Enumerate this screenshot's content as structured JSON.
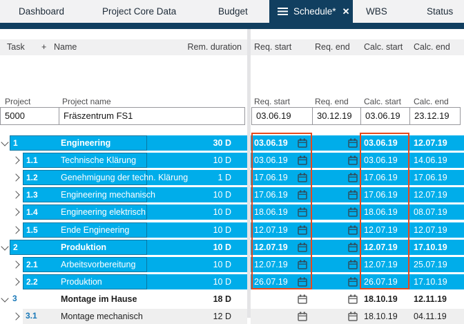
{
  "tabs": {
    "items": [
      {
        "label": "Dashboard",
        "active": false
      },
      {
        "label": "Project Core Data",
        "active": false
      },
      {
        "label": "Budget",
        "active": false
      },
      {
        "label": "Schedule*",
        "active": true
      },
      {
        "label": "WBS",
        "active": false
      },
      {
        "label": "Status",
        "active": false
      }
    ]
  },
  "icons": {
    "menu": "hamburger-icon",
    "close": "✕",
    "calendar": "calendar-icon",
    "chevron_expanded": "chevron-down-icon",
    "chevron_collapsed": "chevron-right-icon"
  },
  "table_header": {
    "task": "Task",
    "plus": "+",
    "name": "Name",
    "rem_duration": "Rem. duration",
    "req_start": "Req. start",
    "req_end": "Req. end",
    "calc_start": "Calc. start",
    "calc_end": "Calc. end"
  },
  "project_header": {
    "project": "Project",
    "project_name": "Project name",
    "req_start": "Req. start",
    "req_end": "Req. end",
    "calc_start": "Calc. start",
    "calc_end": "Calc. end"
  },
  "project_row": {
    "id": "5000",
    "name": "Fräszentrum FS1",
    "req_start": "03.06.19",
    "req_end": "30.12.19",
    "calc_start": "03.06.19",
    "calc_end": "23.12.19"
  },
  "rows": [
    {
      "task": "1",
      "level": 1,
      "expanded": true,
      "selected": true,
      "shaded": false,
      "bold": true,
      "name": "Engineering",
      "duration": "30 D",
      "req_start": "03.06.19",
      "req_end": "",
      "calc_start": "03.06.19",
      "calc_end": "12.07.19"
    },
    {
      "task": "1.1",
      "level": 2,
      "expanded": false,
      "selected": true,
      "shaded": false,
      "bold": false,
      "name": "Technische Klärung",
      "duration": "10 D",
      "req_start": "03.06.19",
      "req_end": "",
      "calc_start": "03.06.19",
      "calc_end": "14.06.19"
    },
    {
      "task": "1.2",
      "level": 2,
      "expanded": false,
      "selected": true,
      "shaded": false,
      "bold": false,
      "name": "Genehmigung der techn. Klärung",
      "duration": "1 D",
      "req_start": "17.06.19",
      "req_end": "",
      "calc_start": "17.06.19",
      "calc_end": "17.06.19"
    },
    {
      "task": "1.3",
      "level": 2,
      "expanded": false,
      "selected": true,
      "shaded": false,
      "bold": false,
      "name": "Engineering mechanisch",
      "duration": "10 D",
      "req_start": "17.06.19",
      "req_end": "",
      "calc_start": "17.06.19",
      "calc_end": "12.07.19"
    },
    {
      "task": "1.4",
      "level": 2,
      "expanded": false,
      "selected": true,
      "shaded": false,
      "bold": false,
      "name": "Engineering elektrisch",
      "duration": "10 D",
      "req_start": "18.06.19",
      "req_end": "",
      "calc_start": "18.06.19",
      "calc_end": "08.07.19"
    },
    {
      "task": "1.5",
      "level": 2,
      "expanded": false,
      "selected": true,
      "shaded": false,
      "bold": false,
      "name": "Ende Engineering",
      "duration": "10 D",
      "req_start": "12.07.19",
      "req_end": "",
      "calc_start": "12.07.19",
      "calc_end": "12.07.19"
    },
    {
      "task": "2",
      "level": 1,
      "expanded": true,
      "selected": true,
      "shaded": false,
      "bold": true,
      "name": "Produktion",
      "duration": "10 D",
      "req_start": "12.07.19",
      "req_end": "",
      "calc_start": "12.07.19",
      "calc_end": "17.10.19"
    },
    {
      "task": "2.1",
      "level": 2,
      "expanded": false,
      "selected": true,
      "shaded": false,
      "bold": false,
      "name": "Arbeitsvorbereitung",
      "duration": "10 D",
      "req_start": "12.07.19",
      "req_end": "",
      "calc_start": "12.07.19",
      "calc_end": "25.07.19"
    },
    {
      "task": "2.2",
      "level": 2,
      "expanded": false,
      "selected": true,
      "shaded": false,
      "bold": false,
      "name": "Produktion",
      "duration": "10 D",
      "req_start": "26.07.19",
      "req_end": "",
      "calc_start": "26.07.19",
      "calc_end": "17.10.19"
    },
    {
      "task": "3",
      "level": 1,
      "expanded": true,
      "selected": false,
      "shaded": false,
      "bold": true,
      "name": "Montage im Hause",
      "duration": "18 D",
      "req_start": "",
      "req_end": "",
      "calc_start": "18.10.19",
      "calc_end": "12.11.19"
    },
    {
      "task": "3.1",
      "level": 2,
      "expanded": false,
      "selected": false,
      "shaded": true,
      "bold": false,
      "name": "Montage mechanisch",
      "duration": "12 D",
      "req_start": "",
      "req_end": "",
      "calc_start": "18.10.19",
      "calc_end": "04.11.19"
    }
  ],
  "colors": {
    "row_highlight_cyan": "#00ADEA",
    "tab_navy": "#113F60",
    "annotation_red": "#E8481C",
    "task_number_blue": "#1878B8"
  }
}
